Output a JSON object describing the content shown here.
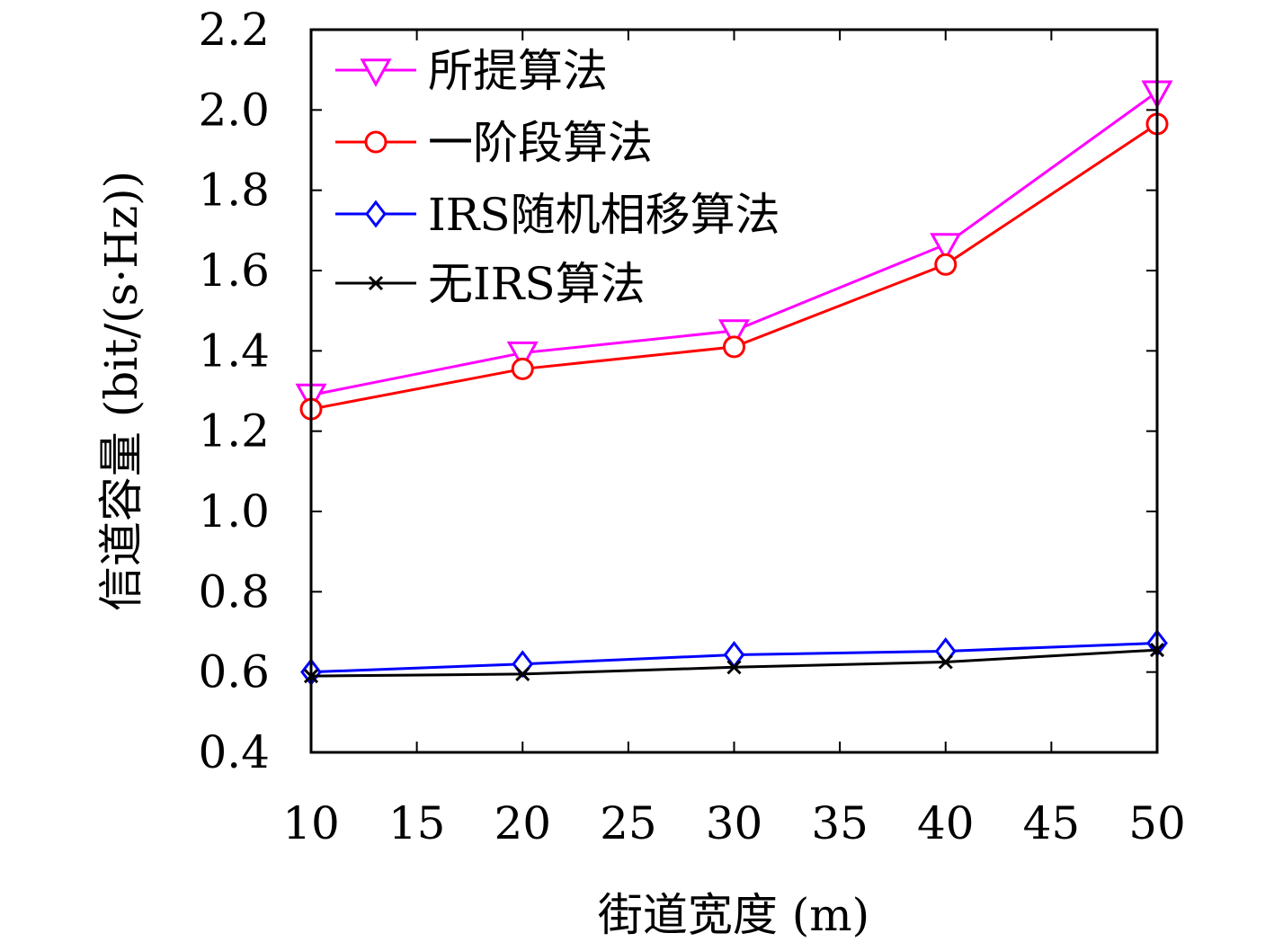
{
  "chart_data": {
    "type": "line",
    "xlabel": "街道宽度 (m)",
    "ylabel": "信道容量 (bit/(s·Hz))",
    "xlim": [
      10,
      50
    ],
    "ylim": [
      0.4,
      2.2
    ],
    "xticks": [
      "10",
      "15",
      "20",
      "25",
      "30",
      "35",
      "40",
      "45",
      "50"
    ],
    "yticks": [
      "0.4",
      "0.6",
      "0.8",
      "1.0",
      "1.2",
      "1.4",
      "1.6",
      "1.8",
      "2.0",
      "2.2"
    ],
    "x": [
      10,
      20,
      30,
      40,
      50
    ],
    "legend_position": "top-left",
    "grid": false,
    "series": [
      {
        "name": "所提算法",
        "values": [
          1.29,
          1.395,
          1.45,
          1.665,
          2.045
        ],
        "color": "#ff00ff",
        "marker": "triangle-down"
      },
      {
        "name": "一阶段算法",
        "values": [
          1.255,
          1.355,
          1.41,
          1.615,
          1.965
        ],
        "color": "#ff0000",
        "marker": "circle"
      },
      {
        "name": "IRS随机相移算法",
        "values": [
          0.6,
          0.62,
          0.643,
          0.652,
          0.672
        ],
        "color": "#0000ff",
        "marker": "diamond"
      },
      {
        "name": "无IRS算法",
        "values": [
          0.59,
          0.595,
          0.612,
          0.625,
          0.655
        ],
        "color": "#000000",
        "marker": "x"
      }
    ]
  }
}
